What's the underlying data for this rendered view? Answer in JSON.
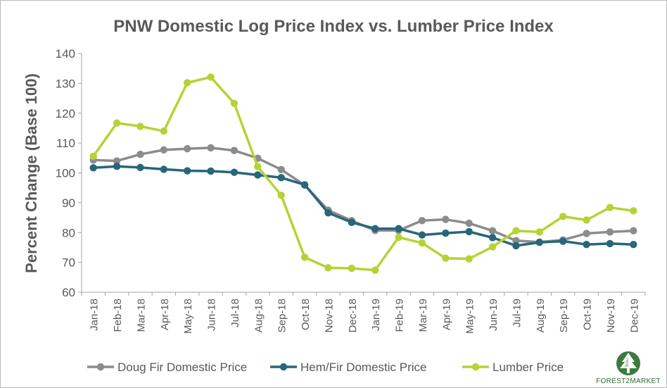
{
  "chart_data": {
    "type": "line",
    "title": "PNW Domestic Log Price Index vs. Lumber Price Index",
    "xlabel": "",
    "ylabel": "Percent Change (Base 100)",
    "ylim": [
      60,
      140
    ],
    "yticks": [
      60,
      70,
      80,
      90,
      100,
      110,
      120,
      130,
      140
    ],
    "grid": false,
    "legend": "bottom",
    "categories": [
      "Jan-18",
      "Feb-18",
      "Mar-18",
      "Apr-18",
      "May-18",
      "Jun-18",
      "Jul-18",
      "Aug-18",
      "Sep-18",
      "Oct-18",
      "Nov-18",
      "Dec-18",
      "Jan-19",
      "Feb-19",
      "Mar-19",
      "Apr-19",
      "May-19",
      "Jun-19",
      "Jul-19",
      "Aug-19",
      "Sep-19",
      "Oct-19",
      "Nov-19",
      "Dec-19"
    ],
    "series": [
      {
        "name": "Doug Fir Domestic Price",
        "color": "#8c8c8c",
        "values": [
          104.3,
          104.0,
          106.2,
          107.7,
          108.1,
          108.4,
          107.5,
          104.9,
          101.1,
          95.9,
          87.5,
          84.0,
          80.7,
          80.7,
          84.0,
          84.4,
          83.1,
          80.6,
          77.3,
          76.8,
          77.5,
          79.7,
          80.2,
          80.6
        ]
      },
      {
        "name": "Hem/Fir Domestic Price",
        "color": "#27667b",
        "values": [
          101.7,
          102.2,
          101.8,
          101.2,
          100.7,
          100.6,
          100.2,
          99.3,
          98.4,
          96.0,
          86.6,
          83.4,
          81.3,
          81.3,
          79.2,
          79.8,
          80.3,
          78.3,
          75.6,
          76.7,
          77.1,
          76.0,
          76.3,
          76.0
        ]
      },
      {
        "name": "Lumber Price",
        "color": "#b4d335",
        "values": [
          105.6,
          116.7,
          115.6,
          114.0,
          130.2,
          132.1,
          123.3,
          102.1,
          92.5,
          71.7,
          68.2,
          68.0,
          67.4,
          78.4,
          76.5,
          71.4,
          71.2,
          75.2,
          80.6,
          80.2,
          85.4,
          84.2,
          88.4,
          87.3
        ]
      }
    ]
  },
  "logo": {
    "text": "FOREST2MARKET",
    "color": "#2f6b3a"
  }
}
